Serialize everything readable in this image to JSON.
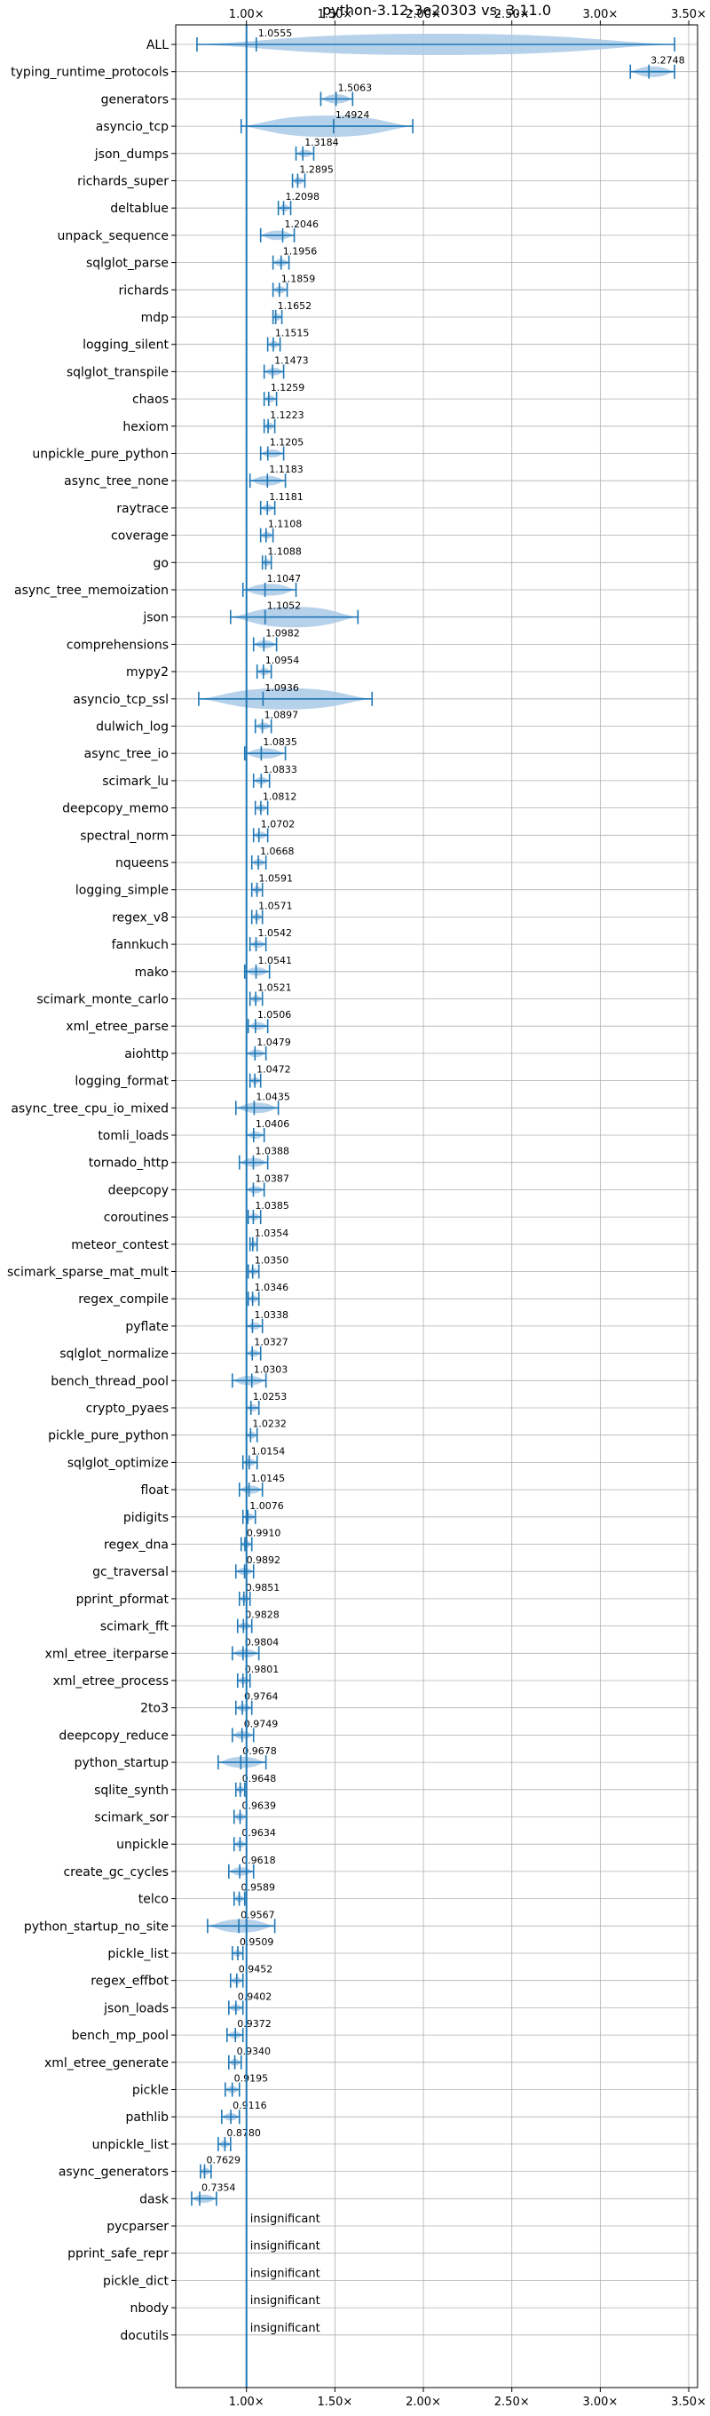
{
  "chart_data": {
    "type": "violin",
    "title": "python-3.12-3e20303 vs. 3.11.0",
    "xlabel": "",
    "ylabel": "",
    "x_ticks": [
      "1.00×",
      "1.50×",
      "2.00×",
      "2.50×",
      "3.00×",
      "3.50×"
    ],
    "x_tick_values": [
      1.0,
      1.5,
      2.0,
      2.5,
      3.0,
      3.5
    ],
    "xlim": [
      0.6,
      3.55
    ],
    "reference_line": 1.0,
    "grid": true,
    "insignificant_label": "insignificant",
    "colors": {
      "violin": "#a9c9e6",
      "line": "#1f77b4",
      "grid": "#b0b0b0"
    },
    "benchmarks": [
      {
        "name": "ALL",
        "label": "1.0555",
        "mean": 1.0555,
        "min": 0.72,
        "max": 3.42
      },
      {
        "name": "typing_runtime_protocols",
        "label": "3.2748",
        "mean": 3.2748,
        "min": 3.17,
        "max": 3.42
      },
      {
        "name": "generators",
        "label": "1.5063",
        "mean": 1.5063,
        "min": 1.42,
        "max": 1.6
      },
      {
        "name": "asyncio_tcp",
        "label": "1.4924",
        "mean": 1.4924,
        "min": 0.97,
        "max": 1.94
      },
      {
        "name": "json_dumps",
        "label": "1.3184",
        "mean": 1.3184,
        "min": 1.28,
        "max": 1.38
      },
      {
        "name": "richards_super",
        "label": "1.2895",
        "mean": 1.2895,
        "min": 1.26,
        "max": 1.33
      },
      {
        "name": "deltablue",
        "label": "1.2098",
        "mean": 1.2098,
        "min": 1.18,
        "max": 1.25
      },
      {
        "name": "unpack_sequence",
        "label": "1.2046",
        "mean": 1.2046,
        "min": 1.08,
        "max": 1.27
      },
      {
        "name": "sqlglot_parse",
        "label": "1.1956",
        "mean": 1.1956,
        "min": 1.15,
        "max": 1.24
      },
      {
        "name": "richards",
        "label": "1.1859",
        "mean": 1.1859,
        "min": 1.15,
        "max": 1.23
      },
      {
        "name": "mdp",
        "label": "1.1652",
        "mean": 1.1652,
        "min": 1.15,
        "max": 1.2
      },
      {
        "name": "logging_silent",
        "label": "1.1515",
        "mean": 1.1515,
        "min": 1.12,
        "max": 1.19
      },
      {
        "name": "sqlglot_transpile",
        "label": "1.1473",
        "mean": 1.1473,
        "min": 1.1,
        "max": 1.21
      },
      {
        "name": "chaos",
        "label": "1.1259",
        "mean": 1.1259,
        "min": 1.1,
        "max": 1.17
      },
      {
        "name": "hexiom",
        "label": "1.1223",
        "mean": 1.1223,
        "min": 1.1,
        "max": 1.16
      },
      {
        "name": "unpickle_pure_python",
        "label": "1.1205",
        "mean": 1.1205,
        "min": 1.08,
        "max": 1.21
      },
      {
        "name": "async_tree_none",
        "label": "1.1183",
        "mean": 1.1183,
        "min": 1.02,
        "max": 1.22
      },
      {
        "name": "raytrace",
        "label": "1.1181",
        "mean": 1.1181,
        "min": 1.08,
        "max": 1.16
      },
      {
        "name": "coverage",
        "label": "1.1108",
        "mean": 1.1108,
        "min": 1.08,
        "max": 1.15
      },
      {
        "name": "go",
        "label": "1.1088",
        "mean": 1.1088,
        "min": 1.09,
        "max": 1.14
      },
      {
        "name": "async_tree_memoization",
        "label": "1.1047",
        "mean": 1.1047,
        "min": 0.98,
        "max": 1.28
      },
      {
        "name": "json",
        "label": "1.1052",
        "mean": 1.1052,
        "min": 0.91,
        "max": 1.63
      },
      {
        "name": "comprehensions",
        "label": "1.0982",
        "mean": 1.0982,
        "min": 1.04,
        "max": 1.17
      },
      {
        "name": "mypy2",
        "label": "1.0954",
        "mean": 1.0954,
        "min": 1.06,
        "max": 1.14
      },
      {
        "name": "asyncio_tcp_ssl",
        "label": "1.0936",
        "mean": 1.0936,
        "min": 0.73,
        "max": 1.71
      },
      {
        "name": "dulwich_log",
        "label": "1.0897",
        "mean": 1.0897,
        "min": 1.05,
        "max": 1.14
      },
      {
        "name": "async_tree_io",
        "label": "1.0835",
        "mean": 1.0835,
        "min": 0.99,
        "max": 1.22
      },
      {
        "name": "scimark_lu",
        "label": "1.0833",
        "mean": 1.0833,
        "min": 1.04,
        "max": 1.13
      },
      {
        "name": "deepcopy_memo",
        "label": "1.0812",
        "mean": 1.0812,
        "min": 1.05,
        "max": 1.12
      },
      {
        "name": "spectral_norm",
        "label": "1.0702",
        "mean": 1.0702,
        "min": 1.04,
        "max": 1.12
      },
      {
        "name": "nqueens",
        "label": "1.0668",
        "mean": 1.0668,
        "min": 1.03,
        "max": 1.11
      },
      {
        "name": "logging_simple",
        "label": "1.0591",
        "mean": 1.0591,
        "min": 1.03,
        "max": 1.09
      },
      {
        "name": "regex_v8",
        "label": "1.0571",
        "mean": 1.0571,
        "min": 1.03,
        "max": 1.09
      },
      {
        "name": "fannkuch",
        "label": "1.0542",
        "mean": 1.0542,
        "min": 1.02,
        "max": 1.11
      },
      {
        "name": "mako",
        "label": "1.0541",
        "mean": 1.0541,
        "min": 0.99,
        "max": 1.13
      },
      {
        "name": "scimark_monte_carlo",
        "label": "1.0521",
        "mean": 1.0521,
        "min": 1.02,
        "max": 1.09
      },
      {
        "name": "xml_etree_parse",
        "label": "1.0506",
        "mean": 1.0506,
        "min": 1.01,
        "max": 1.12
      },
      {
        "name": "aiohttp",
        "label": "1.0479",
        "mean": 1.0479,
        "min": 1.0,
        "max": 1.11
      },
      {
        "name": "logging_format",
        "label": "1.0472",
        "mean": 1.0472,
        "min": 1.02,
        "max": 1.08
      },
      {
        "name": "async_tree_cpu_io_mixed",
        "label": "1.0435",
        "mean": 1.0435,
        "min": 0.94,
        "max": 1.18
      },
      {
        "name": "tomli_loads",
        "label": "1.0406",
        "mean": 1.0406,
        "min": 1.0,
        "max": 1.1
      },
      {
        "name": "tornado_http",
        "label": "1.0388",
        "mean": 1.0388,
        "min": 0.96,
        "max": 1.12
      },
      {
        "name": "deepcopy",
        "label": "1.0387",
        "mean": 1.0387,
        "min": 1.0,
        "max": 1.1
      },
      {
        "name": "coroutines",
        "label": "1.0385",
        "mean": 1.0385,
        "min": 1.01,
        "max": 1.08
      },
      {
        "name": "meteor_contest",
        "label": "1.0354",
        "mean": 1.0354,
        "min": 1.02,
        "max": 1.06
      },
      {
        "name": "scimark_sparse_mat_mult",
        "label": "1.0350",
        "mean": 1.035,
        "min": 1.01,
        "max": 1.07
      },
      {
        "name": "regex_compile",
        "label": "1.0346",
        "mean": 1.0346,
        "min": 1.01,
        "max": 1.07
      },
      {
        "name": "pyflate",
        "label": "1.0338",
        "mean": 1.0338,
        "min": 1.0,
        "max": 1.09
      },
      {
        "name": "sqlglot_normalize",
        "label": "1.0327",
        "mean": 1.0327,
        "min": 1.0,
        "max": 1.08
      },
      {
        "name": "bench_thread_pool",
        "label": "1.0303",
        "mean": 1.0303,
        "min": 0.92,
        "max": 1.11
      },
      {
        "name": "crypto_pyaes",
        "label": "1.0253",
        "mean": 1.0253,
        "min": 1.0,
        "max": 1.07
      },
      {
        "name": "pickle_pure_python",
        "label": "1.0232",
        "mean": 1.0232,
        "min": 1.0,
        "max": 1.06
      },
      {
        "name": "sqlglot_optimize",
        "label": "1.0154",
        "mean": 1.0154,
        "min": 0.98,
        "max": 1.06
      },
      {
        "name": "float",
        "label": "1.0145",
        "mean": 1.0145,
        "min": 0.96,
        "max": 1.09
      },
      {
        "name": "pidigits",
        "label": "1.0076",
        "mean": 1.0076,
        "min": 0.98,
        "max": 1.05
      },
      {
        "name": "regex_dna",
        "label": "0.9910",
        "mean": 0.991,
        "min": 0.97,
        "max": 1.03
      },
      {
        "name": "gc_traversal",
        "label": "0.9892",
        "mean": 0.9892,
        "min": 0.94,
        "max": 1.04
      },
      {
        "name": "pprint_pformat",
        "label": "0.9851",
        "mean": 0.9851,
        "min": 0.96,
        "max": 1.02
      },
      {
        "name": "scimark_fft",
        "label": "0.9828",
        "mean": 0.9828,
        "min": 0.95,
        "max": 1.03
      },
      {
        "name": "xml_etree_iterparse",
        "label": "0.9804",
        "mean": 0.9804,
        "min": 0.92,
        "max": 1.07
      },
      {
        "name": "xml_etree_process",
        "label": "0.9801",
        "mean": 0.9801,
        "min": 0.95,
        "max": 1.02
      },
      {
        "name": "2to3",
        "label": "0.9764",
        "mean": 0.9764,
        "min": 0.94,
        "max": 1.03
      },
      {
        "name": "deepcopy_reduce",
        "label": "0.9749",
        "mean": 0.9749,
        "min": 0.92,
        "max": 1.04
      },
      {
        "name": "python_startup",
        "label": "0.9678",
        "mean": 0.9678,
        "min": 0.84,
        "max": 1.11
      },
      {
        "name": "sqlite_synth",
        "label": "0.9648",
        "mean": 0.9648,
        "min": 0.94,
        "max": 0.99
      },
      {
        "name": "scimark_sor",
        "label": "0.9639",
        "mean": 0.9639,
        "min": 0.93,
        "max": 1.0
      },
      {
        "name": "unpickle",
        "label": "0.9634",
        "mean": 0.9634,
        "min": 0.93,
        "max": 1.0
      },
      {
        "name": "create_gc_cycles",
        "label": "0.9618",
        "mean": 0.9618,
        "min": 0.9,
        "max": 1.04
      },
      {
        "name": "telco",
        "label": "0.9589",
        "mean": 0.9589,
        "min": 0.93,
        "max": 0.99
      },
      {
        "name": "python_startup_no_site",
        "label": "0.9567",
        "mean": 0.9567,
        "min": 0.78,
        "max": 1.16
      },
      {
        "name": "pickle_list",
        "label": "0.9509",
        "mean": 0.9509,
        "min": 0.92,
        "max": 0.98
      },
      {
        "name": "regex_effbot",
        "label": "0.9452",
        "mean": 0.9452,
        "min": 0.91,
        "max": 0.98
      },
      {
        "name": "json_loads",
        "label": "0.9402",
        "mean": 0.9402,
        "min": 0.9,
        "max": 0.98
      },
      {
        "name": "bench_mp_pool",
        "label": "0.9372",
        "mean": 0.9372,
        "min": 0.89,
        "max": 0.98
      },
      {
        "name": "xml_etree_generate",
        "label": "0.9340",
        "mean": 0.934,
        "min": 0.9,
        "max": 0.97
      },
      {
        "name": "pickle",
        "label": "0.9195",
        "mean": 0.9195,
        "min": 0.88,
        "max": 0.96
      },
      {
        "name": "pathlib",
        "label": "0.9116",
        "mean": 0.9116,
        "min": 0.86,
        "max": 0.96
      },
      {
        "name": "unpickle_list",
        "label": "0.8780",
        "mean": 0.878,
        "min": 0.84,
        "max": 0.91
      },
      {
        "name": "async_generators",
        "label": "0.7629",
        "mean": 0.7629,
        "min": 0.74,
        "max": 0.8
      },
      {
        "name": "dask",
        "label": "0.7354",
        "mean": 0.7354,
        "min": 0.69,
        "max": 0.83
      },
      {
        "name": "pycparser",
        "insignificant": true
      },
      {
        "name": "pprint_safe_repr",
        "insignificant": true
      },
      {
        "name": "pickle_dict",
        "insignificant": true
      },
      {
        "name": "nbody",
        "insignificant": true
      },
      {
        "name": "docutils",
        "insignificant": true
      }
    ]
  }
}
